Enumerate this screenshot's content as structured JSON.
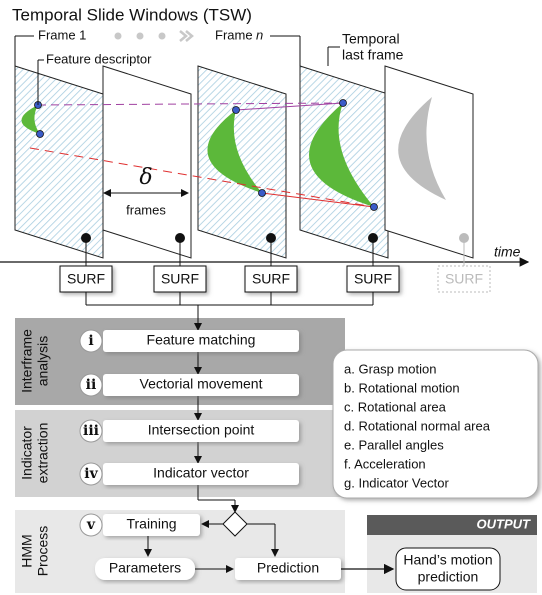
{
  "title": "Temporal Slide Windows (TSW)",
  "frame_labels": {
    "first": "Frame 1",
    "last_prefix": "Frame",
    "last_var": "n"
  },
  "last_frame_label": [
    "Temporal",
    "last frame"
  ],
  "feature_descriptor": "Feature descriptor",
  "delta": {
    "symbol": "δ",
    "unit": "frames"
  },
  "time_label": "time",
  "surf": [
    "SURF",
    "SURF",
    "SURF",
    "SURF",
    "SURF"
  ],
  "sections": [
    {
      "label": [
        "Interframe",
        "analysis"
      ],
      "steps": [
        {
          "numeral": "i",
          "text": "Feature matching"
        },
        {
          "numeral": "ii",
          "text": "Vectorial movement"
        }
      ]
    },
    {
      "label": [
        "Indicator",
        "extraction"
      ],
      "steps": [
        {
          "numeral": "iii",
          "text": "Intersection point"
        },
        {
          "numeral": "iv",
          "text": "Indicator vector"
        }
      ]
    },
    {
      "label": [
        "HMM",
        "Process"
      ],
      "steps": [
        {
          "numeral": "v",
          "text": "Training"
        }
      ]
    }
  ],
  "hmm": {
    "parameters": "Parameters",
    "prediction": "Prediction"
  },
  "output": {
    "header": "OUTPUT",
    "text": [
      "Hand’s motion",
      "prediction"
    ]
  },
  "indicators": [
    "a. Grasp motion",
    "b. Rotational motion",
    "c. Rotational area",
    "d. Rotational normal area",
    "e. Parallel angles",
    "f. Acceleration",
    "g. Indicator Vector"
  ]
}
